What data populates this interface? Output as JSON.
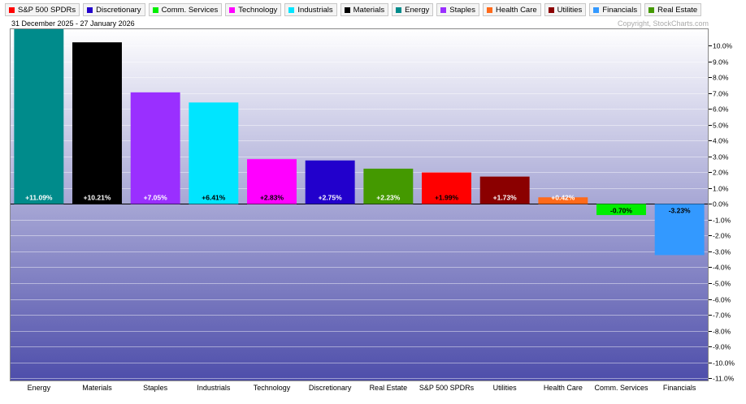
{
  "header": {
    "date_range": "31 December 2025 - 27 January 2026",
    "copyright": "Copyright, StockCharts.com"
  },
  "legend": [
    {
      "label": "S&P 500 SPDRs",
      "color": "#ff0000"
    },
    {
      "label": "Discretionary",
      "color": "#2200cc"
    },
    {
      "label": "Comm. Services",
      "color": "#00ee00"
    },
    {
      "label": "Technology",
      "color": "#ff00ff"
    },
    {
      "label": "Industrials",
      "color": "#00e5ff"
    },
    {
      "label": "Materials",
      "color": "#000000"
    },
    {
      "label": "Energy",
      "color": "#008b8b"
    },
    {
      "label": "Staples",
      "color": "#9a2fff"
    },
    {
      "label": "Health Care",
      "color": "#ff6a1a"
    },
    {
      "label": "Utilities",
      "color": "#8b0000"
    },
    {
      "label": "Financials",
      "color": "#3399ff"
    },
    {
      "label": "Real Estate",
      "color": "#449900"
    }
  ],
  "chart_data": {
    "type": "bar",
    "categories": [
      "Energy",
      "Materials",
      "Staples",
      "Industrials",
      "Technology",
      "Discretionary",
      "Real Estate",
      "S&P 500 SPDRs",
      "Utilities",
      "Health Care",
      "Comm. Services",
      "Financials"
    ],
    "values": [
      11.09,
      10.21,
      7.05,
      6.41,
      2.83,
      2.75,
      2.23,
      1.99,
      1.73,
      0.42,
      -0.7,
      -3.23
    ],
    "data_labels": [
      "+11.09%",
      "+10.21%",
      "+7.05%",
      "+6.41%",
      "+2.83%",
      "+2.75%",
      "+2.23%",
      "+1.99%",
      "+1.73%",
      "+0.42%",
      "-0.70%",
      "-3.23%"
    ],
    "bar_colors": [
      "#008b8b",
      "#000000",
      "#9a2fff",
      "#00e5ff",
      "#ff00ff",
      "#2200cc",
      "#449900",
      "#ff0000",
      "#8b0000",
      "#ff6a1a",
      "#00ee00",
      "#3399ff"
    ],
    "label_colors": [
      "#ffffff",
      "#ffffff",
      "#ffffff",
      "#000000",
      "#000000",
      "#ffffff",
      "#ffffff",
      "#000000",
      "#ffffff",
      "#ffffff",
      "#000000",
      "#000000"
    ],
    "y_ticks": [
      10,
      9,
      8,
      7,
      6,
      5,
      4,
      3,
      2,
      1,
      0,
      -1,
      -2,
      -3,
      -4,
      -5,
      -6,
      -7,
      -8,
      -9,
      -10,
      -11
    ],
    "y_tick_labels": [
      "10.0%",
      "9.0%",
      "8.0%",
      "7.0%",
      "6.0%",
      "5.0%",
      "4.0%",
      "3.0%",
      "2.0%",
      "1.0%",
      "0.0%",
      "-1.0%",
      "-2.0%",
      "-3.0%",
      "-4.0%",
      "-5.0%",
      "-6.0%",
      "-7.0%",
      "-8.0%",
      "-9.0%",
      "-10.0%",
      "-11.0%"
    ],
    "ylim": [
      -11.2,
      11.09
    ],
    "y_axis_position": "right",
    "grid": true
  }
}
